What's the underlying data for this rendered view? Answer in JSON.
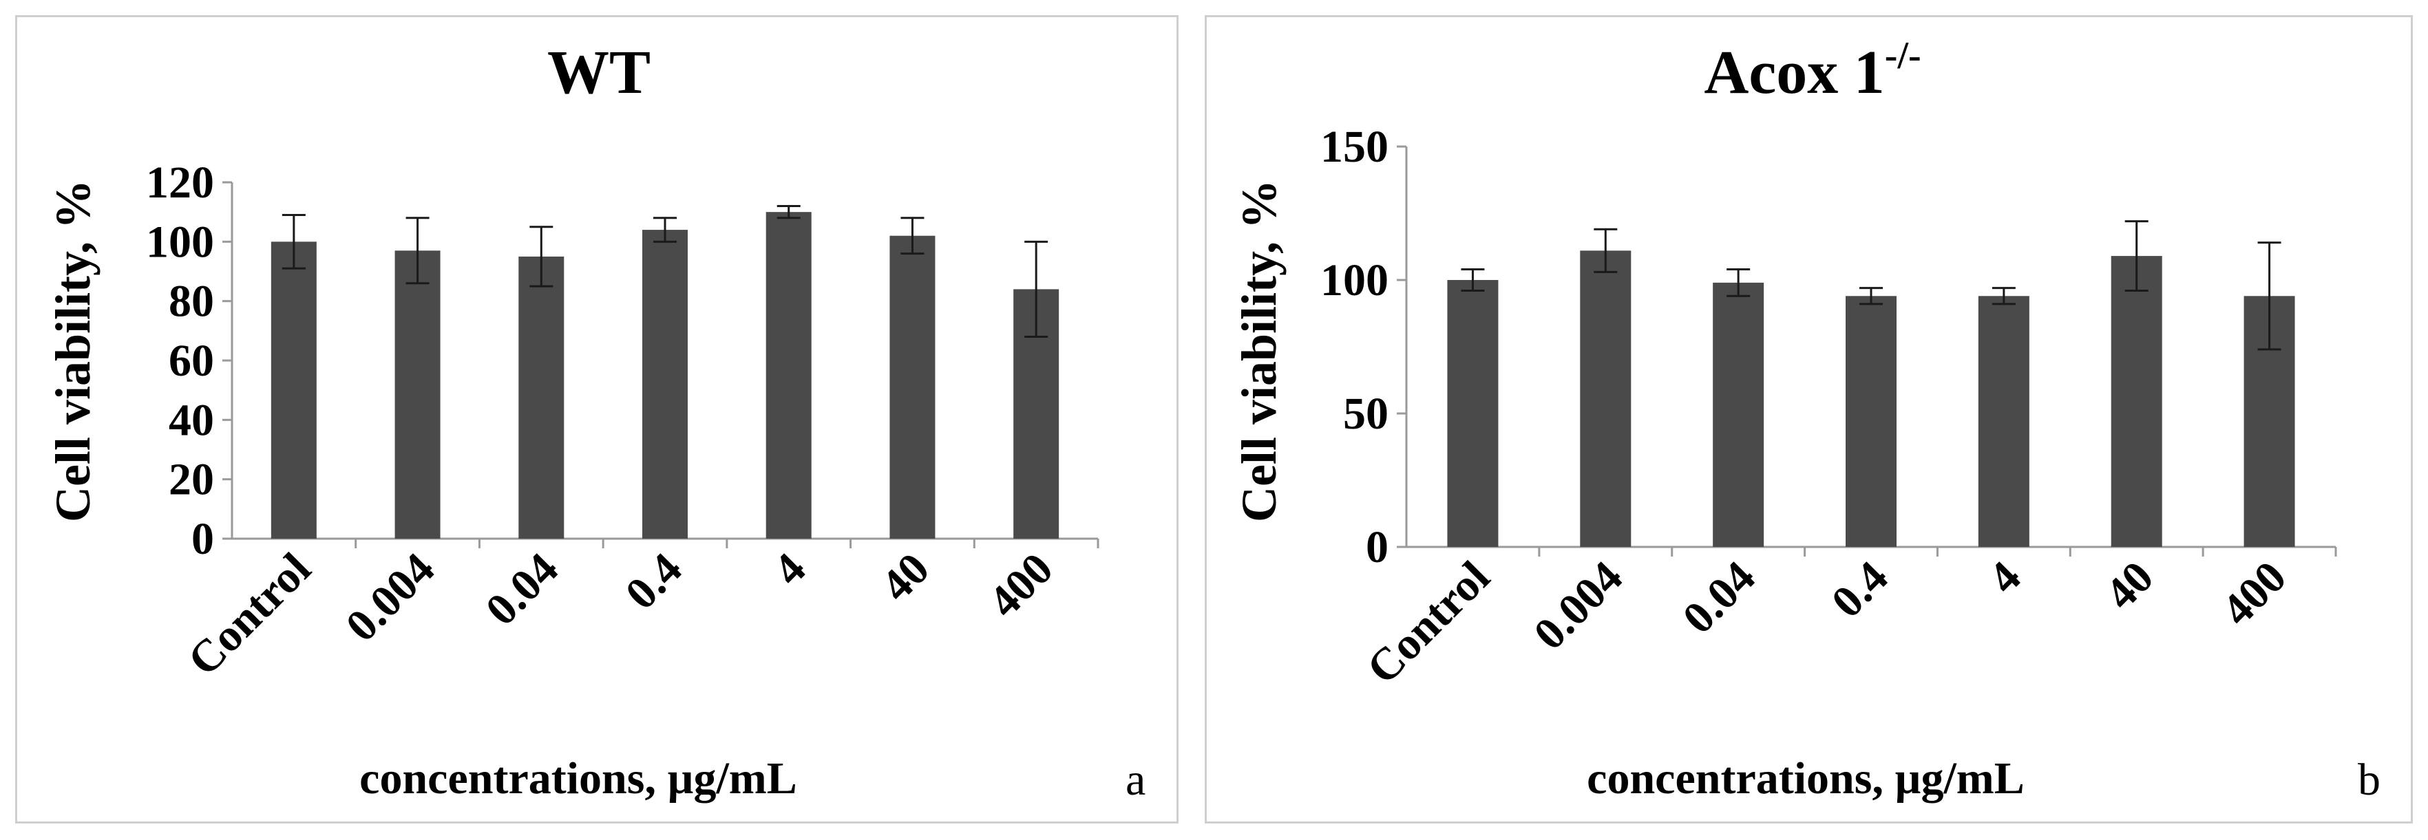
{
  "colors": {
    "bar": "#4a4a4a",
    "axis": "#9a9a9a",
    "panel_border": "#cfcfcf"
  },
  "chart_data": [
    {
      "type": "bar",
      "title": "WT",
      "title_sup": "",
      "ylabel": "Cell viability, %",
      "xlabel": "concentrations, µg/mL",
      "panel_letter": "a",
      "categories": [
        "Control",
        "0.004",
        "0.04",
        "0.4",
        "4",
        "40",
        "400"
      ],
      "values": [
        100,
        97,
        95,
        104,
        110,
        102,
        84
      ],
      "errors": [
        9,
        11,
        10,
        4,
        2,
        6,
        16
      ],
      "ylim": [
        0,
        120
      ],
      "yticks": [
        0,
        20,
        40,
        60,
        80,
        100,
        120
      ],
      "grid": false
    },
    {
      "type": "bar",
      "title": "Acox 1",
      "title_sup": "-/-",
      "ylabel": "Cell viability, %",
      "xlabel": "concentrations, µg/mL",
      "panel_letter": "b",
      "categories": [
        "Control",
        "0.004",
        "0.04",
        "0.4",
        "4",
        "40",
        "400"
      ],
      "values": [
        100,
        111,
        99,
        94,
        94,
        109,
        94
      ],
      "errors": [
        4,
        8,
        5,
        3,
        3,
        13,
        20
      ],
      "ylim": [
        0,
        150
      ],
      "yticks": [
        0,
        50,
        100,
        150
      ],
      "grid": false
    }
  ]
}
